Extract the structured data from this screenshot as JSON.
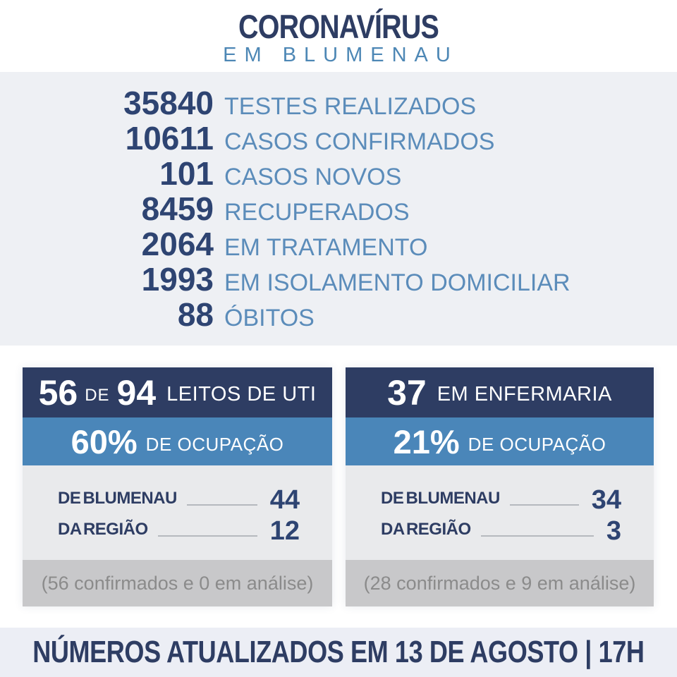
{
  "colors": {
    "navy-bg": "#2e3d63",
    "navy-text": "#2e4472",
    "blue-band": "#4a86b9",
    "blue-label": "#5b8cba",
    "title-sub": "#4d87b5",
    "panel-bg": "#eef0f4",
    "card-body-bg": "#e9eaec",
    "card-foot-bg": "#c8c8ca",
    "foot-text": "#8b8b8b",
    "bar-bg": "#eceef5",
    "line": "#b5b9be"
  },
  "title": {
    "main": "CORONAVÍRUS",
    "sub": "EM BLUMENAU"
  },
  "stats": {
    "rows": [
      {
        "value": "35840",
        "label": "TESTES REALIZADOS"
      },
      {
        "value": "10611",
        "label": "CASOS CONFIRMADOS"
      },
      {
        "value": "101",
        "label": "CASOS NOVOS"
      },
      {
        "value": "8459",
        "label": "RECUPERADOS"
      },
      {
        "value": "2064",
        "label": "EM TRATAMENTO"
      },
      {
        "value": "1993",
        "label": "EM ISOLAMENTO DOMICILIAR"
      },
      {
        "value": "88",
        "label": "ÓBITOS"
      }
    ]
  },
  "uti_card": {
    "occupied": "56",
    "connector": "DE",
    "capacity": "94",
    "header_label": "LEITOS DE UTI",
    "occupancy_pct": "60%",
    "occupancy_label": "DE OCUPAÇÃO",
    "rows": [
      {
        "label": "DE BLUMENAU",
        "value": "44"
      },
      {
        "label": "DA REGIÃO",
        "value": "12"
      }
    ],
    "footnote": "(56 confirmados e 0 em análise)"
  },
  "ward_card": {
    "count": "37",
    "header_label": "EM ENFERMARIA",
    "occupancy_pct": "21%",
    "occupancy_label": "DE OCUPAÇÃO",
    "rows": [
      {
        "label": "DE BLUMENAU",
        "value": "34"
      },
      {
        "label": "DA REGIÃO",
        "value": "3"
      }
    ],
    "footnote": "(28 confirmados e 9 em análise)"
  },
  "footer_bar": {
    "text": "NÚMEROS ATUALIZADOS EM 13 DE AGOSTO | 17H"
  },
  "chart_data": {
    "type": "table",
    "title": "CORONAVÍRUS EM BLUMENAU",
    "categories": [
      "TESTES REALIZADOS",
      "CASOS CONFIRMADOS",
      "CASOS NOVOS",
      "RECUPERADOS",
      "EM TRATAMENTO",
      "EM ISOLAMENTO DOMICILIAR",
      "ÓBITOS"
    ],
    "values": [
      35840,
      10611,
      101,
      8459,
      2064,
      1993,
      88
    ],
    "leitos_uti": {
      "ocupados": 56,
      "total": 94,
      "ocupacao_pct": 60,
      "de_blumenau": 44,
      "da_regiao": 12,
      "confirmados": 56,
      "em_analise": 0
    },
    "enfermaria": {
      "ocupados": 37,
      "ocupacao_pct": 21,
      "de_blumenau": 34,
      "da_regiao": 3,
      "confirmados": 28,
      "em_analise": 9
    },
    "updated": "13 DE AGOSTO | 17H"
  }
}
